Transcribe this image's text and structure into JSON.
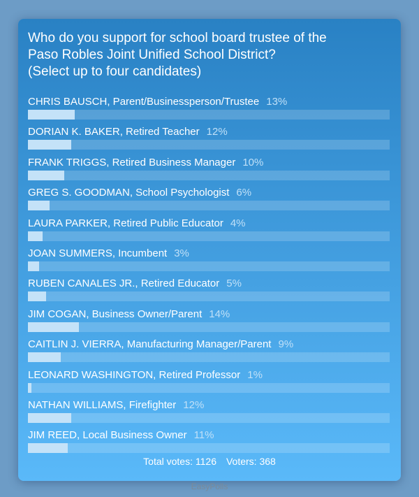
{
  "poll": {
    "question": "Who do you support for school board trustee of the Paso Robles Joint Unified School District? (Select up to four candidates)",
    "question_lines": [
      "Who do you support for school board trustee of the",
      "Paso Robles Joint Unified School District?",
      "(Select up to four candidates)"
    ],
    "options": [
      {
        "label": "CHRIS BAUSCH, Parent/Businessperson/Trustee",
        "percent_label": "13%",
        "percent": 13
      },
      {
        "label": "DORIAN K. BAKER, Retired Teacher",
        "percent_label": "12%",
        "percent": 12
      },
      {
        "label": "FRANK TRIGGS, Retired Business Manager",
        "percent_label": "10%",
        "percent": 10
      },
      {
        "label": "GREG S. GOODMAN, School Psychologist",
        "percent_label": "6%",
        "percent": 6
      },
      {
        "label": "LAURA PARKER, Retired Public Educator",
        "percent_label": "4%",
        "percent": 4
      },
      {
        "label": "JOAN SUMMERS, Incumbent",
        "percent_label": "3%",
        "percent": 3
      },
      {
        "label": "RUBEN CANALES JR., Retired Educator",
        "percent_label": "5%",
        "percent": 5
      },
      {
        "label": "JIM COGAN, Business Owner/Parent",
        "percent_label": "14%",
        "percent": 14
      },
      {
        "label": "CAITLIN J. VIERRA, Manufacturing Manager/Parent",
        "percent_label": "9%",
        "percent": 9
      },
      {
        "label": "LEONARD WASHINGTON, Retired Professor",
        "percent_label": "1%",
        "percent": 1
      },
      {
        "label": "NATHAN WILLIAMS, Firefighter",
        "percent_label": "12%",
        "percent": 12
      },
      {
        "label": "JIM REED, Local Business Owner",
        "percent_label": "11%",
        "percent": 11
      }
    ],
    "total_votes": "Total votes: 1126",
    "voters": "Voters: 368"
  },
  "brand": "EasyPolls",
  "colors": {
    "card_top": "#2981c4",
    "card_bottom": "#5ab9f9",
    "bar_fill": "#c4e2f8",
    "background": "#6d9cc6"
  }
}
